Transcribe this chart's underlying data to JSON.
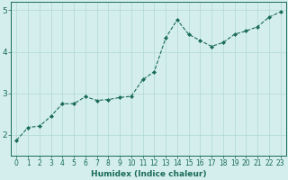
{
  "x": [
    0,
    1,
    2,
    3,
    4,
    5,
    6,
    7,
    8,
    9,
    10,
    11,
    12,
    13,
    14,
    15,
    16,
    17,
    18,
    19,
    20,
    21,
    22,
    23
  ],
  "y": [
    1.87,
    2.18,
    2.21,
    2.45,
    2.75,
    2.75,
    2.92,
    2.83,
    2.85,
    2.9,
    2.93,
    3.33,
    3.52,
    4.33,
    4.77,
    4.42,
    4.27,
    4.13,
    4.22,
    4.42,
    4.5,
    4.6,
    4.83,
    4.96
  ],
  "xlabel": "Humidex (Indice chaleur)",
  "ylim": [
    1.5,
    5.2
  ],
  "xlim": [
    -0.5,
    23.5
  ],
  "yticks": [
    2,
    3,
    4,
    5
  ],
  "xticks": [
    0,
    1,
    2,
    3,
    4,
    5,
    6,
    7,
    8,
    9,
    10,
    11,
    12,
    13,
    14,
    15,
    16,
    17,
    18,
    19,
    20,
    21,
    22,
    23
  ],
  "line_color": "#1a6b5a",
  "marker": "D",
  "marker_size": 2.0,
  "bg_color": "#d4eeed",
  "grid_color": "#b0d8d5",
  "xlabel_fontsize": 6.5,
  "tick_fontsize": 5.5
}
